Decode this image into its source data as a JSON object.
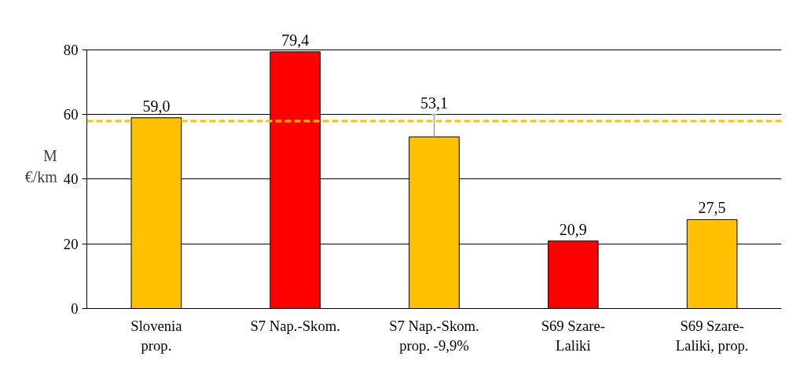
{
  "chart_data": {
    "type": "bar",
    "ylabel": "M €/km",
    "categories": [
      "Slovenia prop.",
      "S7 Nap.-Skom.",
      "S7 Nap.-Skom. prop. -9,9%",
      "S69 Szare-Laliki",
      "S69 Szare-Laliki, prop."
    ],
    "values": [
      59.0,
      79.4,
      53.1,
      20.9,
      27.5
    ],
    "colors": [
      "#ffc000",
      "#ff0000",
      "#ffc000",
      "#ff0000",
      "#ffc000"
    ],
    "value_labels": [
      "59,0",
      "79,4",
      "53,1",
      "20,9",
      "27,5"
    ],
    "errors": [
      null,
      null,
      [
        53.1,
        60
      ],
      null,
      null
    ],
    "ref_lines": [
      {
        "axis": "y",
        "value": 58,
        "color": "#ffc000",
        "line_style": "dashed"
      }
    ],
    "ylim": [
      0,
      80
    ],
    "yticks": [
      0,
      20,
      40,
      60,
      80
    ],
    "grid": "y"
  }
}
